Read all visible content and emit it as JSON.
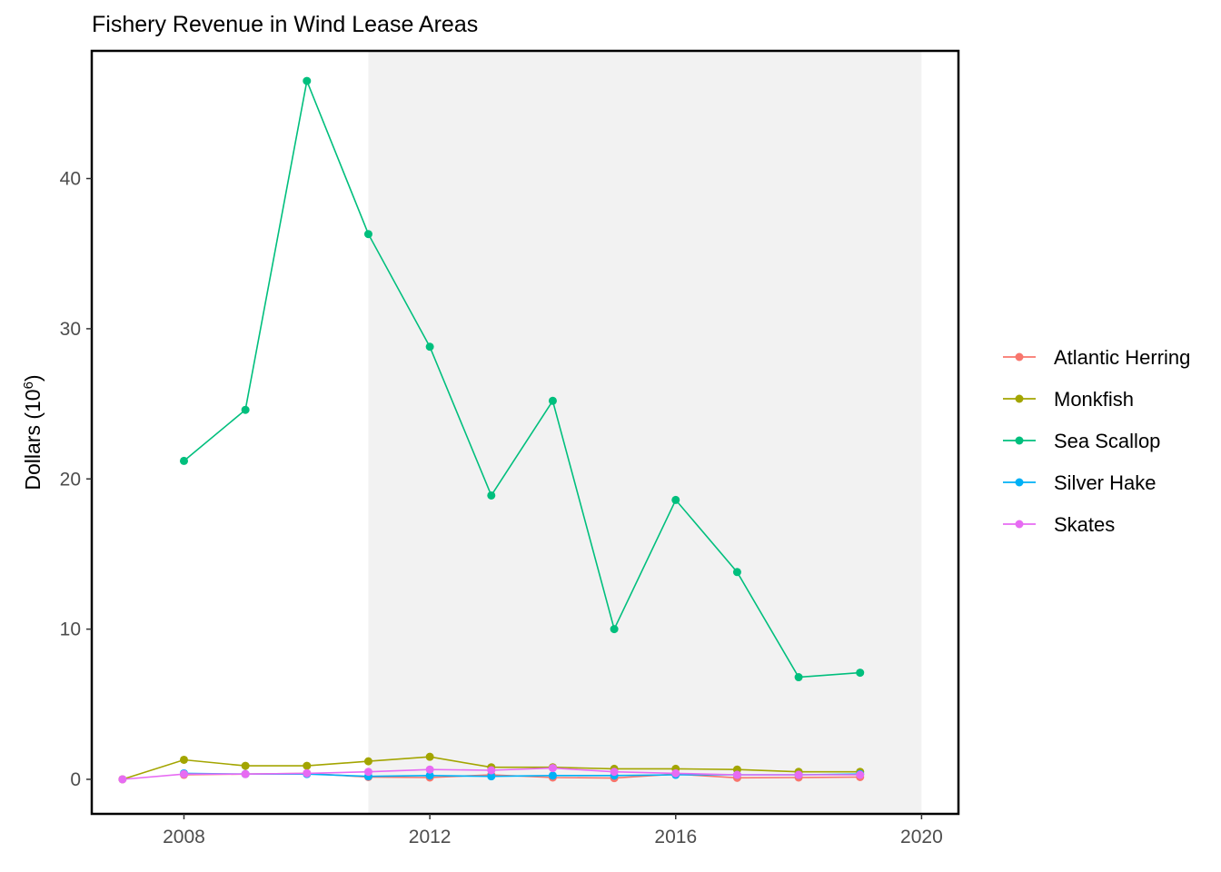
{
  "chart_data": {
    "type": "line",
    "title": "Fishery Revenue in Wind Lease Areas",
    "xlabel": "",
    "ylabel": {
      "base": "Dollars (10",
      "superscript": "6",
      "close": ")"
    },
    "xlim": [
      2006.5,
      2020.6
    ],
    "ylim": [
      -2.3,
      48.5
    ],
    "x_ticks": [
      2008,
      2012,
      2016,
      2020
    ],
    "y_ticks": [
      0,
      10,
      20,
      30,
      40
    ],
    "shaded_region": {
      "x_start": 2011,
      "x_end": 2020,
      "color": "#f2f2f2"
    },
    "grid": false,
    "legend_position": "right",
    "series": [
      {
        "name": "Atlantic Herring",
        "color": "#F8766D",
        "x": [
          2008,
          2009,
          2010,
          2011,
          2012,
          2013,
          2014,
          2015,
          2016,
          2017,
          2018,
          2019
        ],
        "y": [
          0.3,
          0.35,
          0.4,
          0.15,
          0.12,
          0.3,
          0.12,
          0.08,
          0.35,
          0.1,
          0.12,
          0.15
        ]
      },
      {
        "name": "Monkfish",
        "color": "#A3A500",
        "x": [
          2007,
          2008,
          2009,
          2010,
          2011,
          2012,
          2013,
          2014,
          2015,
          2016,
          2017,
          2018,
          2019
        ],
        "y": [
          0.0,
          1.3,
          0.9,
          0.9,
          1.2,
          1.5,
          0.8,
          0.8,
          0.7,
          0.7,
          0.65,
          0.5,
          0.5
        ]
      },
      {
        "name": "Sea Scallop",
        "color": "#00BF7D",
        "x": [
          2008,
          2009,
          2010,
          2011,
          2012,
          2013,
          2014,
          2015,
          2016,
          2017,
          2018,
          2019
        ],
        "y": [
          21.2,
          24.6,
          46.5,
          36.3,
          28.8,
          18.9,
          25.2,
          10.0,
          18.6,
          13.8,
          6.8,
          7.1
        ]
      },
      {
        "name": "Silver Hake",
        "color": "#00B0F6",
        "x": [
          2008,
          2009,
          2010,
          2011,
          2012,
          2013,
          2014,
          2015,
          2016,
          2017,
          2018,
          2019
        ],
        "y": [
          0.4,
          0.35,
          0.35,
          0.2,
          0.25,
          0.2,
          0.25,
          0.25,
          0.3,
          0.3,
          0.3,
          0.35
        ]
      },
      {
        "name": "Skates",
        "color": "#E76BF3",
        "x": [
          2007,
          2008,
          2009,
          2010,
          2011,
          2012,
          2013,
          2014,
          2015,
          2016,
          2017,
          2018,
          2019
        ],
        "y": [
          0.0,
          0.35,
          0.35,
          0.4,
          0.5,
          0.65,
          0.6,
          0.75,
          0.5,
          0.4,
          0.3,
          0.3,
          0.3
        ]
      }
    ]
  }
}
